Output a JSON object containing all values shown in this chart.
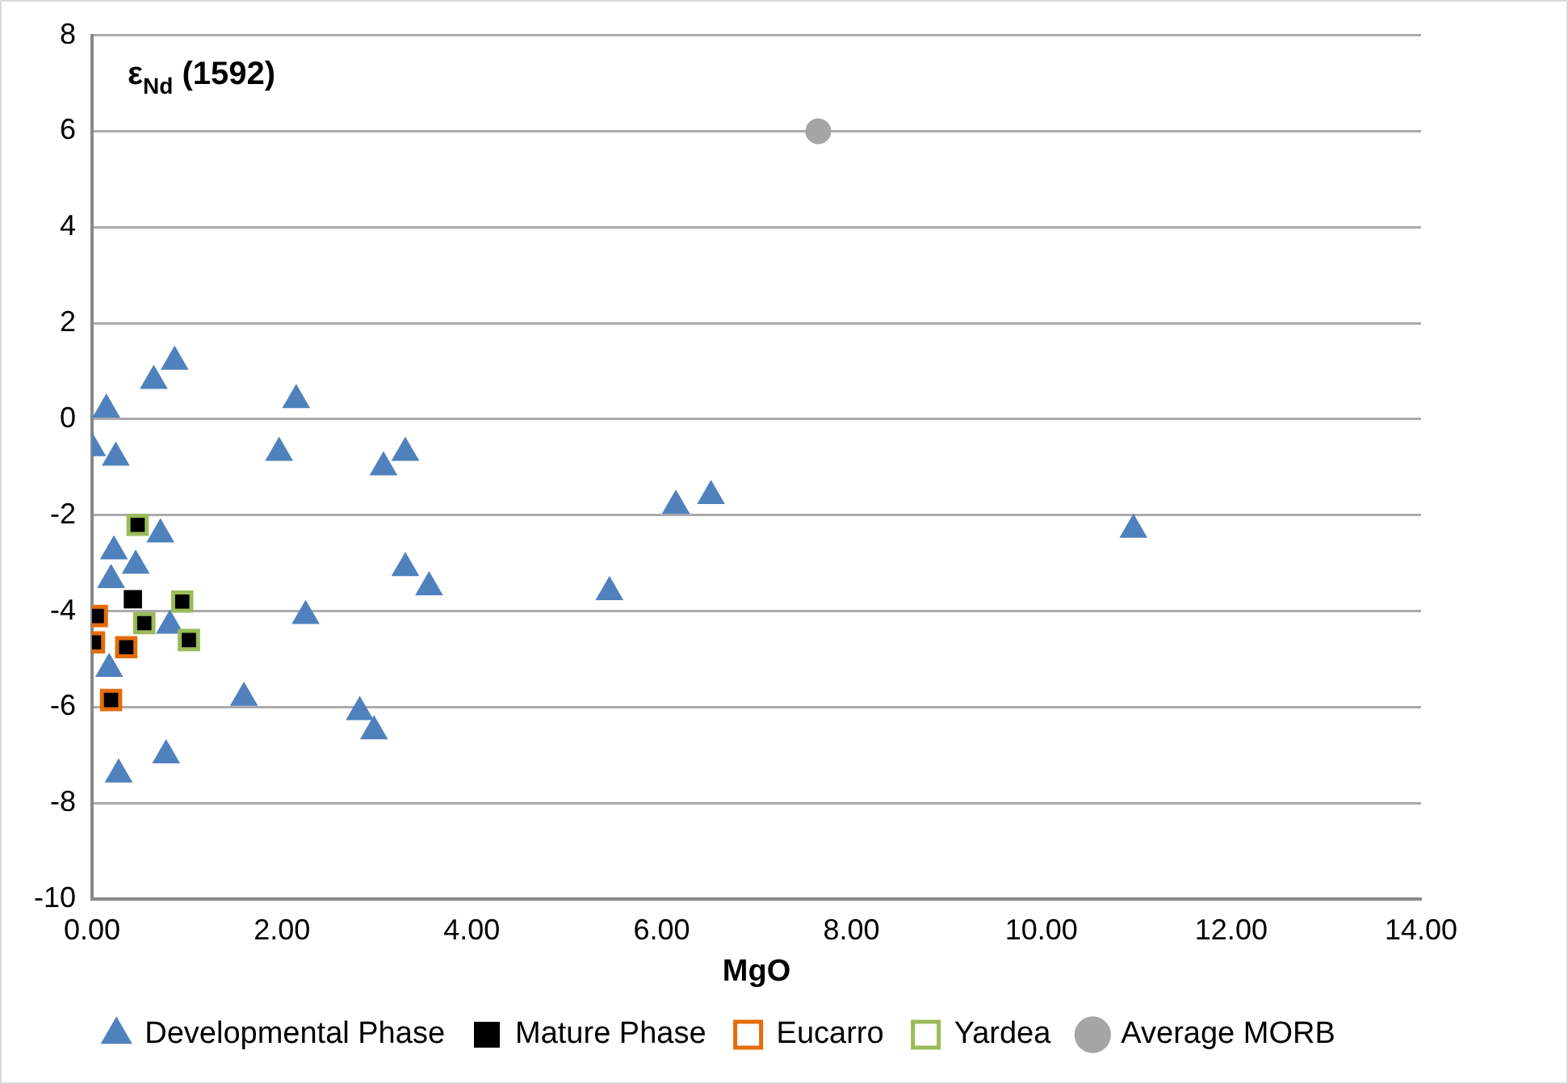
{
  "chart_data": {
    "type": "scatter",
    "title": "ε$_{Nd}$ (1592)",
    "xlabel": "MgO",
    "xlim": [
      0,
      14
    ],
    "xticks": [
      {
        "value": 0,
        "label": "0.00"
      },
      {
        "value": 2,
        "label": "2.00"
      },
      {
        "value": 4,
        "label": "4.00"
      },
      {
        "value": 6,
        "label": "6.00"
      },
      {
        "value": 8,
        "label": "8.00"
      },
      {
        "value": 10,
        "label": "10.00"
      },
      {
        "value": 12,
        "label": "12.00"
      },
      {
        "value": 14,
        "label": "14.00"
      }
    ],
    "ylim": [
      -10,
      8
    ],
    "yticks": [
      -10,
      -8,
      -6,
      -4,
      -2,
      0,
      2,
      4,
      6,
      8
    ],
    "grid": "y",
    "legend": "bottom",
    "series": [
      {
        "name": "Developmental Phase",
        "color": "#4f81bd",
        "marker": "triangle",
        "x": [
          0.0,
          0.15,
          0.25,
          0.65,
          0.87,
          1.97,
          2.15,
          3.07,
          3.3,
          3.3,
          3.55,
          2.25,
          1.6,
          2.82,
          2.97,
          0.78,
          0.28,
          5.45,
          6.15,
          6.52,
          10.97,
          0.72,
          0.23,
          0.46,
          0.2,
          0.82,
          0.18
        ],
        "values": [
          -0.6,
          0.2,
          -0.8,
          0.8,
          1.2,
          -0.7,
          0.4,
          -1.0,
          -0.7,
          -3.1,
          -3.5,
          -4.1,
          -5.8,
          -6.1,
          -6.5,
          -7.0,
          -7.4,
          -3.6,
          -1.8,
          -1.6,
          -2.3,
          -2.4,
          -2.75,
          -3.05,
          -3.35,
          -4.3,
          -5.2
        ]
      },
      {
        "name": "Mature Phase",
        "color": "#000000",
        "marker": "square",
        "x": [
          0.48,
          0.43,
          0.95,
          0.55,
          1.02,
          0.05,
          0.02,
          0.36,
          0.2
        ],
        "values": [
          -2.2,
          -3.75,
          -3.8,
          -4.25,
          -4.6,
          -4.1,
          -4.65,
          -4.75,
          -5.85
        ]
      },
      {
        "name": "Eucarro",
        "color": "#e46c0a",
        "marker": "square_open",
        "x": [
          0.05,
          0.02,
          0.36,
          0.2
        ],
        "values": [
          -4.1,
          -4.65,
          -4.75,
          -5.85
        ]
      },
      {
        "name": "Yardea",
        "color": "#9bbb59",
        "marker": "square_open",
        "x": [
          0.48,
          0.95,
          0.55,
          1.02
        ],
        "values": [
          -2.2,
          -3.8,
          -4.25,
          -4.6
        ]
      },
      {
        "name": "Average MORB",
        "color": "#a5a5a5",
        "marker": "circle",
        "x": [
          7.65
        ],
        "values": [
          6
        ]
      }
    ]
  }
}
